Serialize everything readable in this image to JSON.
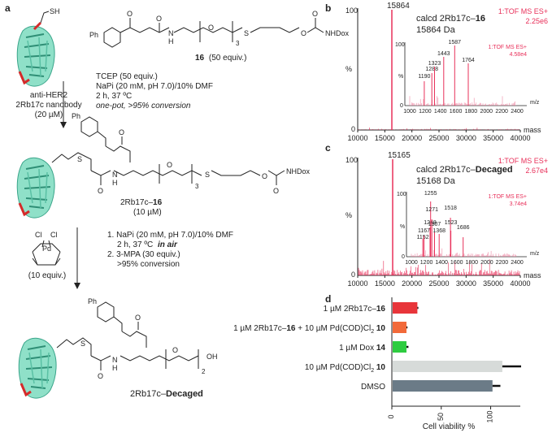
{
  "panels": {
    "a": {
      "label": "a",
      "protein_top": [
        "anti-HER2",
        "2Rb17c nanobody",
        "(20 µM)"
      ],
      "thiol": "SH",
      "reagent_16": {
        "number": "16",
        "equiv": "(50 equiv.)"
      },
      "atoms": {
        "Ph": "Ph",
        "O": "O",
        "N": "N",
        "H": "H",
        "S": "S",
        "NHDox": "NHDox",
        "sub3": "3",
        "sub2": "2",
        "OH": "OH",
        "Cl": "Cl",
        "Pd": "Pd"
      },
      "step1": [
        "TCEP (50 equiv.)",
        "NaPi (20 mM, pH 7.0)/10% DMF",
        "2 h, 37 ºC",
        "one-pot, >95% conversion"
      ],
      "conjugate": {
        "name": "2Rb17c–16",
        "prefix": "2Rb17c–",
        "num": "16",
        "conc": "(10 µM)"
      },
      "pd_equiv": "(10 equiv.)",
      "step2": [
        "1. NaPi (20 mM, pH 7.0)/10% DMF",
        "2 h, 37 ºC",
        "in air",
        "2. 3-MPA (30 equiv.)",
        ">95% conversion"
      ],
      "product": {
        "prefix": "2Rb17c–",
        "name": "Decaged"
      }
    },
    "b": {
      "label": "b",
      "peak": "15864",
      "calcd": [
        "calcd 2Rb17c–",
        "16",
        "15864 Da"
      ],
      "tof": [
        "1:TOF MS ES+",
        "2.25e6"
      ],
      "ylabel": "%",
      "xlabel": "mass",
      "y_top": "100",
      "y_bot": "0",
      "xticks": [
        "10000",
        "15000",
        "20000",
        "25000",
        "30000",
        "35000",
        "40000"
      ],
      "inset": {
        "tof": [
          "1:TOF MS ES+",
          "4.58e4"
        ],
        "peaks": [
          "1190",
          "1288",
          "1323",
          "1443",
          "1587",
          "1764"
        ],
        "xticks": [
          "1000",
          "1200",
          "1400",
          "1600",
          "1800",
          "2000",
          "2200",
          "2400"
        ],
        "xlabel": "m/z",
        "ylabel": "%",
        "y_top": "100",
        "y_bot": "0"
      }
    },
    "c": {
      "label": "c",
      "peak": "15165",
      "calcd": [
        "calcd 2Rb17c–",
        "Decaged",
        "15168 Da"
      ],
      "tof": [
        "1:TOF MS ES+",
        "2.67e4"
      ],
      "ylabel": "%",
      "xlabel": "mass",
      "y_top": "100",
      "y_bot": "0",
      "xticks": [
        "10000",
        "15000",
        "20000",
        "25000",
        "30000",
        "35000",
        "40000"
      ],
      "inset": {
        "tof": [
          "1:TOF MS ES+",
          "3.74e4"
        ],
        "peaks": [
          "1152",
          "1167",
          "1248",
          "1255",
          "1271",
          "1307",
          "1368",
          "1518",
          "1523",
          "1686"
        ],
        "xticks": [
          "1000",
          "1200",
          "1400",
          "1600",
          "1800",
          "2000",
          "2200",
          "2400"
        ],
        "xlabel": "m/z",
        "ylabel": "%",
        "y_top": "100",
        "y_bot": "0"
      }
    },
    "d": {
      "label": "d"
    }
  },
  "chart_data": [
    {
      "type": "bar",
      "orientation": "horizontal",
      "categories": [
        "1 µM 2Rb17c–16",
        "1 µM 2Rb17c–16 + 10 µM Pd(COD)Cl2 10",
        "1 µM Dox 14",
        "10 µM Pd(COD)Cl2 10",
        "DMSO"
      ],
      "category_labels": [
        {
          "pre": "1 µM 2Rb17c–",
          "bold": "16",
          "sub": "",
          "tail": "",
          "tailbold": ""
        },
        {
          "pre": "1 µM 2Rb17c–",
          "bold": "16",
          "mid": " + 10 µM Pd(COD)Cl",
          "sub": "2",
          "tail": " ",
          "tailbold": "10"
        },
        {
          "pre": "1 µM Dox ",
          "bold": "14",
          "sub": "",
          "tail": "",
          "tailbold": ""
        },
        {
          "pre": "10 µM Pd(COD)Cl",
          "bold": "",
          "sub": "2",
          "tail": " ",
          "tailbold": "10"
        },
        {
          "pre": "DMSO",
          "bold": "",
          "sub": "",
          "tail": "",
          "tailbold": ""
        }
      ],
      "values": [
        25,
        14,
        14,
        111,
        101
      ],
      "errors": [
        1,
        1,
        2,
        19,
        8
      ],
      "colors": [
        "#e8353a",
        "#f26a3a",
        "#2ecc40",
        "#d7dbd9",
        "#6b7b87"
      ],
      "xlabel": "Cell viability %",
      "xlim": [
        0,
        130
      ],
      "xticks": [
        0,
        50,
        100
      ]
    }
  ]
}
